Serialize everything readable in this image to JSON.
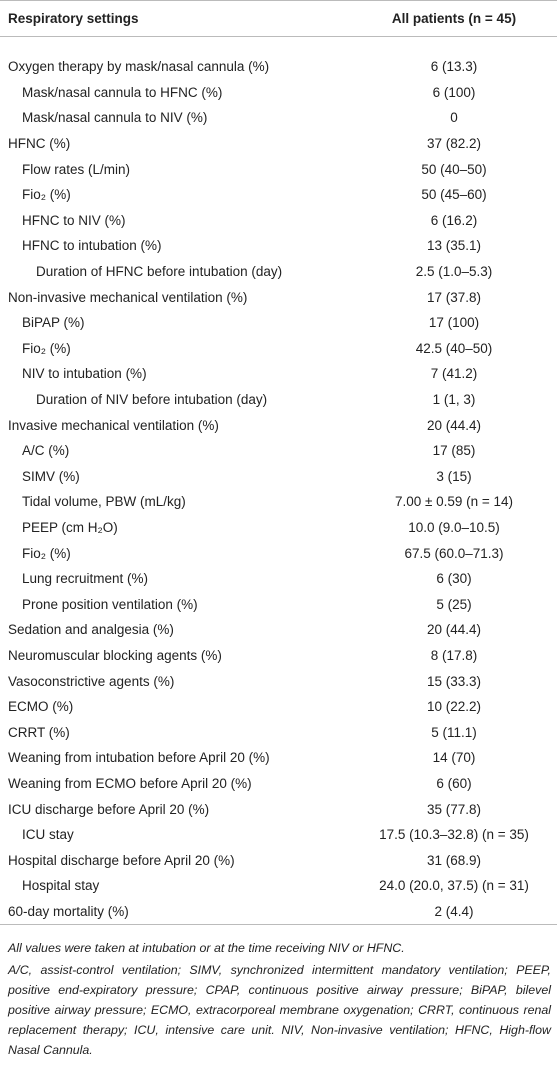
{
  "table": {
    "header": [
      "Respiratory settings",
      "All patients (n = 45)"
    ],
    "rows": [
      {
        "label": "Oxygen therapy by mask/nasal cannula (%)",
        "value": "6 (13.3)",
        "rows": [
          {
            "label": "Mask/nasal cannula to HFNC (%)",
            "value": "6 (100)"
          },
          {
            "label": "Mask/nasal cannula to NIV (%)",
            "value": "0"
          }
        ]
      },
      {
        "label": "HFNC (%)",
        "value": "37 (82.2)",
        "rows": [
          {
            "label": "Flow rates (L/min)",
            "value": "50 (40–50)"
          },
          {
            "label": "Fio₂ (%)",
            "value": "50 (45–60)"
          },
          {
            "label": "HFNC to NIV (%)",
            "value": "6 (16.2)"
          },
          {
            "label": "HFNC to intubation (%)",
            "value": "13 (35.1)",
            "rows": [
              {
                "label": "Duration of HFNC before intubation (day)",
                "value": "2.5 (1.0–5.3)"
              }
            ]
          }
        ]
      },
      {
        "label": "Non-invasive mechanical ventilation (%)",
        "value": "17 (37.8)",
        "rows": [
          {
            "label": "BiPAP (%)",
            "value": "17 (100)"
          },
          {
            "label": "Fio₂ (%)",
            "value": "42.5 (40–50)"
          },
          {
            "label": "NIV to intubation (%)",
            "value": "7 (41.2)",
            "rows": [
              {
                "label": "Duration of NIV before intubation (day)",
                "value": "1 (1, 3)"
              }
            ]
          }
        ]
      },
      {
        "label": "Invasive mechanical ventilation (%)",
        "value": "20 (44.4)",
        "rows": [
          {
            "label": "A/C (%)",
            "value": "17 (85)"
          },
          {
            "label": "SIMV (%)",
            "value": "3 (15)"
          },
          {
            "label": "Tidal volume, PBW (mL/kg)",
            "value": "7.00 ± 0.59 (n = 14)"
          },
          {
            "label": "PEEP (cm H₂O)",
            "value": "10.0 (9.0–10.5)"
          },
          {
            "label": "Fio₂ (%)",
            "value": "67.5 (60.0–71.3)"
          },
          {
            "label": "Lung recruitment (%)",
            "value": "6 (30)"
          },
          {
            "label": "Prone position ventilation (%)",
            "value": "5 (25)"
          }
        ]
      },
      {
        "label": "Sedation and analgesia (%)",
        "value": "20 (44.4)"
      },
      {
        "label": "Neuromuscular blocking agents (%)",
        "value": "8 (17.8)"
      },
      {
        "label": "Vasoconstrictive agents (%)",
        "value": "15 (33.3)"
      },
      {
        "label": "ECMO (%)",
        "value": "10 (22.2)"
      },
      {
        "label": "CRRT (%)",
        "value": "5 (11.1)"
      },
      {
        "label": "Weaning from intubation before April 20 (%)",
        "value": "14 (70)"
      },
      {
        "label": "Weaning from ECMO before April 20 (%)",
        "value": "6 (60)"
      },
      {
        "label": "ICU discharge before April 20 (%)",
        "value": "35 (77.8)",
        "rows": [
          {
            "label": "ICU stay",
            "value": "17.5 (10.3–32.8) (n = 35)"
          }
        ]
      },
      {
        "label": "Hospital discharge before April 20 (%)",
        "value": "31 (68.9)",
        "rows": [
          {
            "label": "Hospital stay",
            "value": "24.0 (20.0, 37.5) (n = 31)"
          }
        ]
      },
      {
        "label": "60-day mortality (%)",
        "value": "2 (4.4)"
      }
    ],
    "footnotes": [
      "All values were taken at intubation or at the time receiving NIV or HFNC.",
      "A/C, assist-control ventilation; SIMV, synchronized intermittent mandatory ventilation; PEEP, positive end-expiratory pressure; CPAP, continuous positive airway pressure; BiPAP, bilevel positive airway pressure; ECMO, extracorporeal membrane oxygenation; CRRT, continuous renal replacement therapy; ICU, intensive care unit. NIV, Non-invasive ventilation; HFNC, High-flow Nasal Cannula."
    ]
  }
}
